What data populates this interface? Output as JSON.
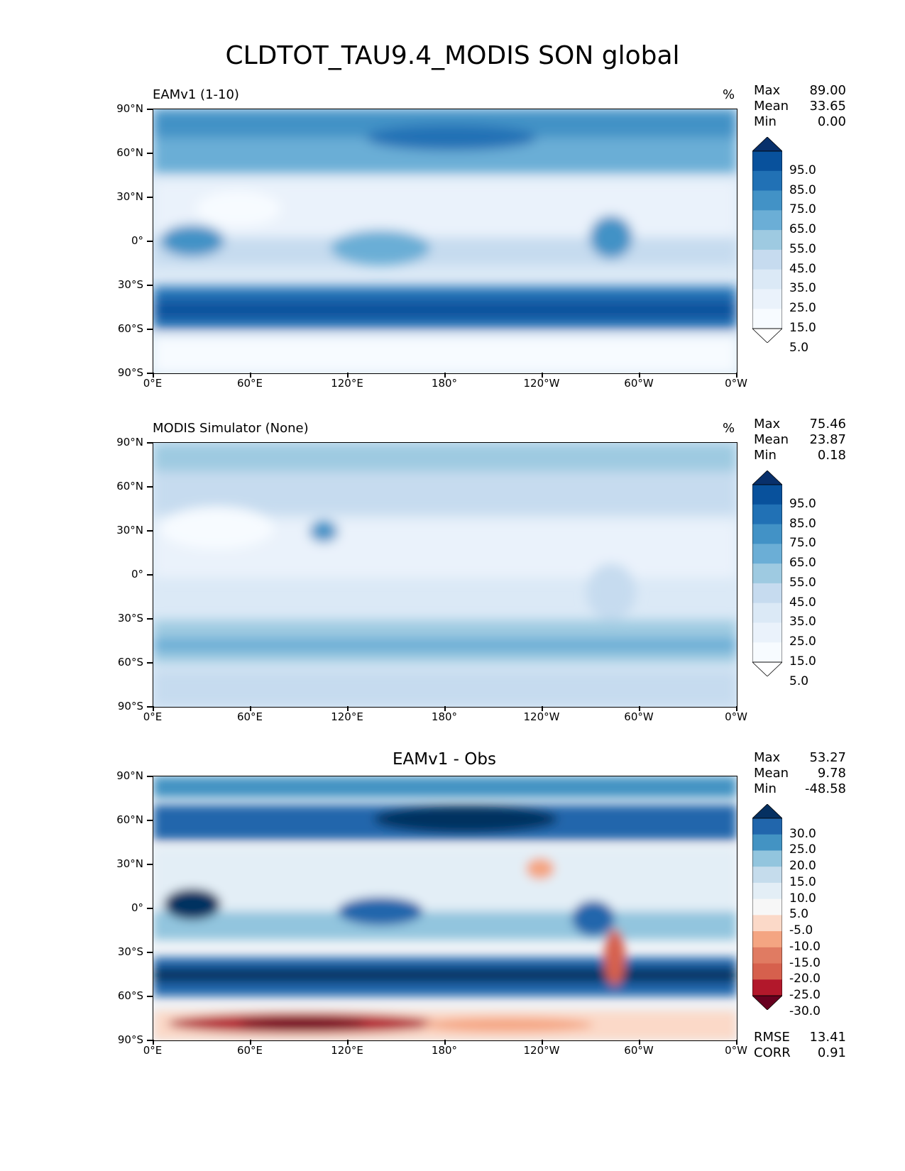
{
  "title": "CLDTOT_TAU9.4_MODIS SON global",
  "lat_ticks": [
    "90°N",
    "60°N",
    "30°N",
    "0°",
    "30°S",
    "60°S",
    "90°S"
  ],
  "lon_ticks": [
    "0°E",
    "60°E",
    "120°E",
    "180°",
    "120°W",
    "60°W",
    "0°W"
  ],
  "panels": [
    {
      "label": "EAMv1 (1-10)",
      "units": "%",
      "stats": {
        "max_label": "Max",
        "max": "89.00",
        "mean_label": "Mean",
        "mean": "33.65",
        "min_label": "Min",
        "min": "0.00"
      },
      "colorbar_labels": [
        "95.0",
        "85.0",
        "75.0",
        "65.0",
        "55.0",
        "45.0",
        "35.0",
        "25.0",
        "15.0",
        "5.0"
      ],
      "colorbar_colors": [
        "#08306b",
        "#08519c",
        "#2171b5",
        "#4292c6",
        "#6baed6",
        "#9ecae1",
        "#c6dbef",
        "#dbe9f6",
        "#eaf2fb",
        "#f7fbff",
        "#ffffff"
      ]
    },
    {
      "label": "MODIS Simulator (None)",
      "units": "%",
      "stats": {
        "max_label": "Max",
        "max": "75.46",
        "mean_label": "Mean",
        "mean": "23.87",
        "min_label": "Min",
        "min": "0.18"
      },
      "colorbar_labels": [
        "95.0",
        "85.0",
        "75.0",
        "65.0",
        "55.0",
        "45.0",
        "35.0",
        "25.0",
        "15.0",
        "5.0"
      ],
      "colorbar_colors": [
        "#08306b",
        "#08519c",
        "#2171b5",
        "#4292c6",
        "#6baed6",
        "#9ecae1",
        "#c6dbef",
        "#dbe9f6",
        "#eaf2fb",
        "#f7fbff",
        "#ffffff"
      ]
    },
    {
      "title": "EAMv1 - Obs",
      "stats": {
        "max_label": "Max",
        "max": "53.27",
        "mean_label": "Mean",
        "mean": "9.78",
        "min_label": "Min",
        "min": "-48.58"
      },
      "colorbar_labels": [
        "30.0",
        "25.0",
        "20.0",
        "15.0",
        "10.0",
        "5.0",
        "-5.0",
        "-10.0",
        "-15.0",
        "-20.0",
        "-25.0",
        "-30.0"
      ],
      "colorbar_colors": [
        "#053061",
        "#2166ac",
        "#4393c3",
        "#92c5de",
        "#c5dcec",
        "#e3eef6",
        "#f7f7f7",
        "#fbd9c8",
        "#f4a582",
        "#e07b62",
        "#d6604d",
        "#b2182b",
        "#67001f"
      ],
      "rmse_label": "RMSE",
      "rmse": "13.41",
      "corr_label": "CORR",
      "corr": "0.91"
    }
  ]
}
